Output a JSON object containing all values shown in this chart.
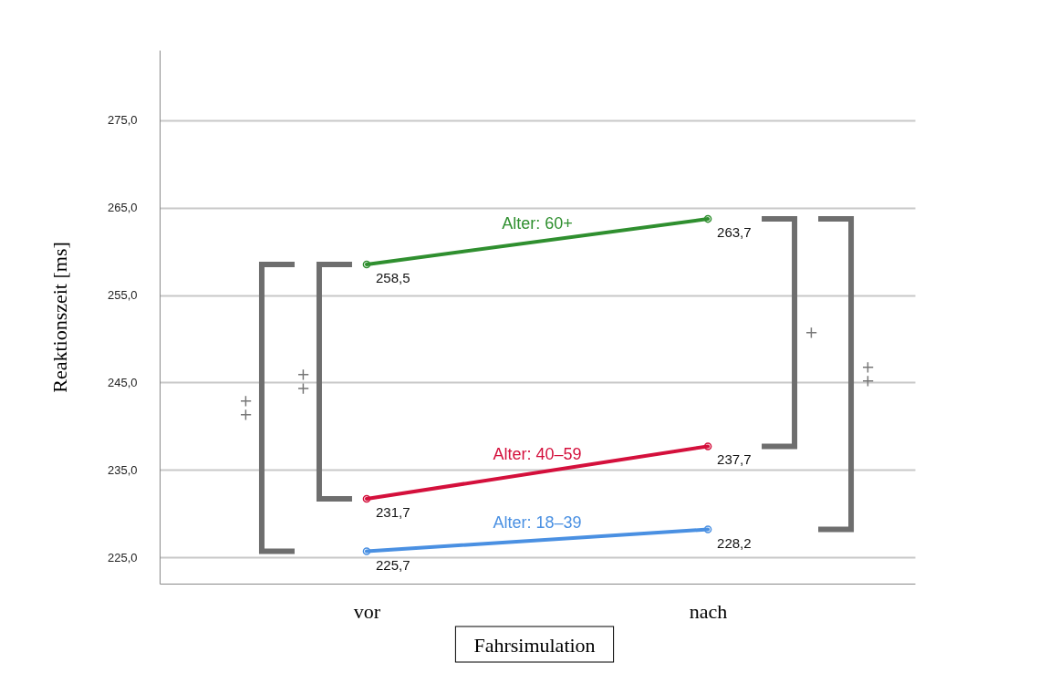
{
  "chart_data": {
    "type": "line",
    "xlabel": "Fahrsimulation",
    "ylabel": "Reaktionszeit [ms]",
    "categories": [
      "vor",
      "nach"
    ],
    "series": [
      {
        "name": "Alter: 60+",
        "color": "#2f8f2f",
        "values": [
          258.5,
          263.7
        ],
        "value_labels": [
          "258,5",
          "263,7"
        ]
      },
      {
        "name": "Alter: 40–59",
        "color": "#d4103c",
        "values": [
          231.7,
          237.7
        ],
        "value_labels": [
          "231,7",
          "237,7"
        ]
      },
      {
        "name": "Alter: 18–39",
        "color": "#4a90e2",
        "values": [
          225.7,
          228.2
        ],
        "value_labels": [
          "225,7",
          "228,2"
        ]
      }
    ],
    "ylim": [
      222,
      283
    ],
    "yticks": [
      {
        "value": 225,
        "label": "225,0"
      },
      {
        "value": 235,
        "label": "235,0"
      },
      {
        "value": 245,
        "label": "245,0"
      },
      {
        "value": 255,
        "label": "255,0"
      },
      {
        "value": 265,
        "label": "265,0"
      },
      {
        "value": 275,
        "label": "275,0"
      }
    ],
    "grid": "y",
    "marker": "circle",
    "line_style": "solid",
    "annotations": [
      "++",
      "++",
      "+",
      "++"
    ]
  }
}
